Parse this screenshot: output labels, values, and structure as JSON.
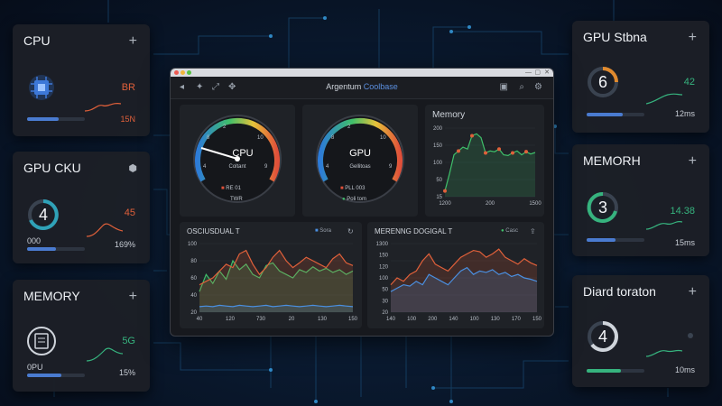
{
  "window": {
    "title_main": "Argentum",
    "title_accent": "Coolbase",
    "toolbar_icons": [
      "arrow-icon",
      "pin-icon",
      "move-icon",
      "save-icon",
      "search-icon",
      "settings-icon"
    ],
    "gauges": [
      {
        "label": "CPU",
        "ticks": [
          "2",
          "8",
          "10",
          "4",
          "9"
        ],
        "sub": "Coltant",
        "legend_a": "RE 01",
        "legend_b": "TWR"
      },
      {
        "label": "GPU",
        "ticks": [
          "2",
          "8",
          "10",
          "4",
          "9"
        ],
        "sub": "Gellitoas",
        "legend_a": "PLL 003",
        "legend_b": "Poli tom"
      }
    ],
    "memory_panel": {
      "title": "Memory",
      "yticks": [
        "200",
        "150",
        "100",
        "50",
        "15"
      ],
      "xticks": [
        "1200",
        "200",
        "1500"
      ],
      "chart_data": {
        "type": "line",
        "title": "Memory",
        "x": [
          0,
          1,
          2,
          3,
          4,
          5,
          6,
          7,
          8,
          9,
          10,
          11,
          12,
          13,
          14,
          15,
          16,
          17,
          18,
          19,
          20
        ],
        "series": [
          {
            "values": [
              15,
              60,
              110,
              120,
              130,
              125,
              160,
              165,
              155,
              115,
              120,
              118,
              125,
              110,
              108,
              115,
              120,
              110,
              118,
              112,
              116
            ]
          }
        ]
      }
    },
    "lower_left": {
      "title": "OSCIUSDUAL T",
      "legend": "Sora",
      "yticks": [
        "100",
        "80",
        "60",
        "40",
        "20"
      ],
      "xticks": [
        "40",
        "120",
        "730",
        "20",
        "130",
        "150"
      ],
      "chart_data": {
        "type": "line",
        "series": [
          {
            "values": [
              30,
              55,
              42,
              60,
              48,
              75,
              62,
              70,
              55,
              50,
              68,
              72,
              60,
              55,
              50,
              62,
              58,
              66,
              60,
              64,
              58,
              62,
              55,
              60
            ]
          },
          {
            "values": [
              40,
              45,
              50,
              60,
              70,
              65,
              85,
              90,
              70,
              55,
              65,
              80,
              90,
              75,
              65,
              72,
              80,
              75,
              70,
              65,
              78,
              85,
              72,
              68
            ]
          },
          {
            "values": [
              8,
              9,
              8,
              10,
              9,
              8,
              10,
              9,
              8,
              9,
              10,
              8,
              9,
              10,
              9,
              8,
              9,
              10,
              9,
              8,
              9,
              10,
              9,
              8
            ]
          }
        ]
      }
    },
    "lower_right": {
      "title": "MERENNG DOGIGAL T",
      "legend": "Casc",
      "yticks": [
        "1300",
        "150",
        "120",
        "100",
        "50",
        "30",
        "20"
      ],
      "xticks": [
        "140",
        "100",
        "200",
        "140",
        "100",
        "130",
        "170",
        "150"
      ],
      "chart_data": {
        "type": "line",
        "series": [
          {
            "values": [
              40,
              50,
              45,
              55,
              60,
              75,
              85,
              70,
              65,
              60,
              70,
              80,
              85,
              90,
              88,
              80,
              85,
              92,
              80,
              75,
              70,
              78,
              72,
              68
            ]
          },
          {
            "values": [
              30,
              35,
              40,
              38,
              45,
              40,
              55,
              50,
              45,
              40,
              50,
              60,
              65,
              55,
              60,
              58,
              62,
              55,
              58,
              52,
              55,
              50,
              48,
              45
            ]
          }
        ]
      }
    }
  },
  "left_widgets": [
    {
      "title": "CPU",
      "value": "BR",
      "sub": "15N",
      "bar_fill": 0.55,
      "accent": "#e0603a",
      "bar_color": "#4a7bd0"
    },
    {
      "title": "GPU CKU",
      "ring": "4",
      "value": "45",
      "sub": "169%",
      "left": "000",
      "bar_fill": 0.5,
      "accent": "#e0603a",
      "bar_color": "#4a7bd0"
    },
    {
      "title": "MEMORY",
      "value": "5G",
      "sub": "15%",
      "left": "0PU",
      "bar_fill": 0.6,
      "accent": "#36b37e",
      "bar_color": "#4a7bd0"
    }
  ],
  "right_widgets": [
    {
      "title": "GPU Stbna",
      "ring": "6",
      "value": "42",
      "sub": "12ms",
      "bar_fill": 0.62,
      "accent": "#36b37e",
      "ring_color": "#e08a2e",
      "bar_color": "#4a7bd0"
    },
    {
      "title": "MEMORH",
      "ring": "3",
      "value": "14.38",
      "sub": "15ms",
      "bar_fill": 0.5,
      "accent": "#36b37e",
      "ring_color": "#36b37e",
      "bar_color": "#4a7bd0"
    },
    {
      "title": "Diard toraton",
      "ring": "4",
      "value": "",
      "sub": "10ms",
      "bar_fill": 0.6,
      "accent": "#36b37e",
      "ring_color": "#cfd4db",
      "bar_color": "#36b37e"
    }
  ],
  "colors": {
    "bg": "#0a1a30",
    "panel": "#1f2227",
    "orange": "#e0603a",
    "green": "#3fbf6a",
    "blue": "#4a8fe0"
  }
}
